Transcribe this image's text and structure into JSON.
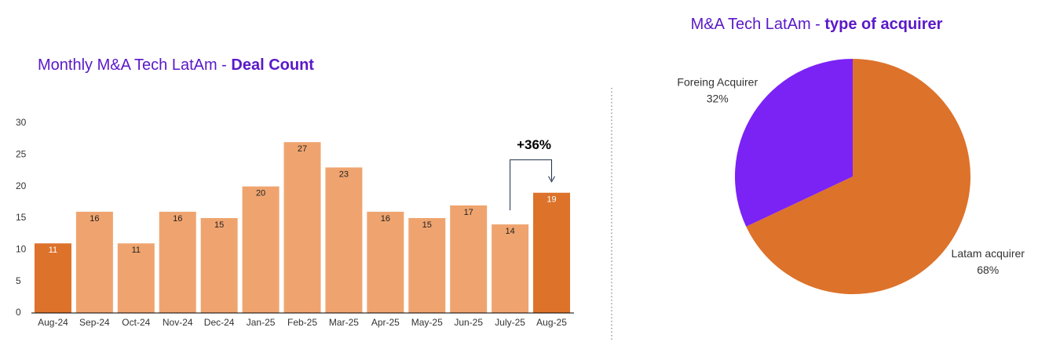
{
  "chart_data": [
    {
      "type": "bar",
      "title": "Monthly M&A Tech LatAm - ",
      "title_bold": "Deal Count",
      "categories": [
        "Aug-24",
        "Sep-24",
        "Oct-24",
        "Nov-24",
        "Dec-24",
        "Jan-25",
        "Feb-25",
        "Mar-25",
        "Apr-25",
        "May-25",
        "Jun-25",
        "July-25",
        "Aug-25"
      ],
      "values": [
        11,
        16,
        11,
        16,
        15,
        20,
        27,
        23,
        16,
        15,
        17,
        14,
        19
      ],
      "colors": [
        "#dd722b",
        "#efa46f",
        "#efa46f",
        "#efa46f",
        "#efa46f",
        "#efa46f",
        "#efa46f",
        "#efa46f",
        "#efa46f",
        "#efa46f",
        "#efa46f",
        "#efa46f",
        "#dd722b"
      ],
      "ylim": [
        0,
        30
      ],
      "yticks": [
        0,
        5,
        10,
        15,
        20,
        25,
        30
      ],
      "annotation": "+36%"
    },
    {
      "type": "pie",
      "title": "M&A Tech LatAm - ",
      "title_bold": "type of acquirer",
      "categories": [
        "Latam acquirer",
        "Foreing Acquirer"
      ],
      "values": [
        68,
        32
      ],
      "value_labels": [
        "68%",
        "32%"
      ],
      "colors": [
        "#dd722b",
        "#7b22f5"
      ]
    }
  ]
}
